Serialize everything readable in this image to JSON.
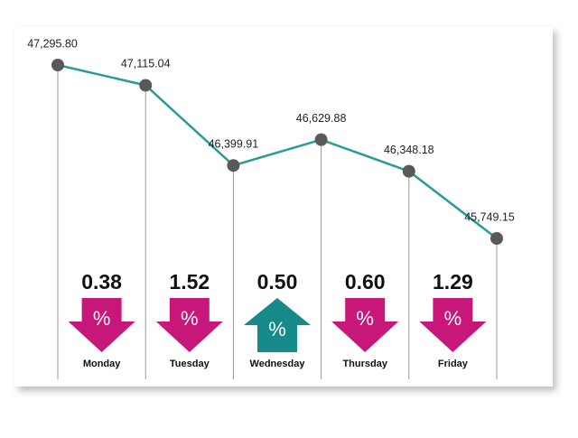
{
  "chart_data": {
    "type": "line",
    "series": [
      {
        "color": "#2a9a9a",
        "marker_color": "#595959",
        "values": [
          47295.8,
          47115.04,
          46399.91,
          46629.88,
          46348.18,
          45749.15
        ],
        "value_labels": [
          "47,295.80",
          "47,115.04",
          "46,399.91",
          "46,629.88",
          "46,348.18",
          "45,749.15"
        ]
      }
    ],
    "days": {
      "categories": [
        "Monday",
        "Tuesday",
        "Wednesday",
        "Thursday",
        "Friday"
      ],
      "values": [
        0.38,
        1.52,
        0.5,
        0.6,
        1.29
      ],
      "value_labels": [
        "0.38",
        "1.52",
        "0.50",
        "0.60",
        "1.29"
      ],
      "directions": [
        "down",
        "down",
        "up",
        "down",
        "down"
      ],
      "symbol": "%",
      "down_color": "#c8177a",
      "up_color": "#16898a"
    }
  }
}
